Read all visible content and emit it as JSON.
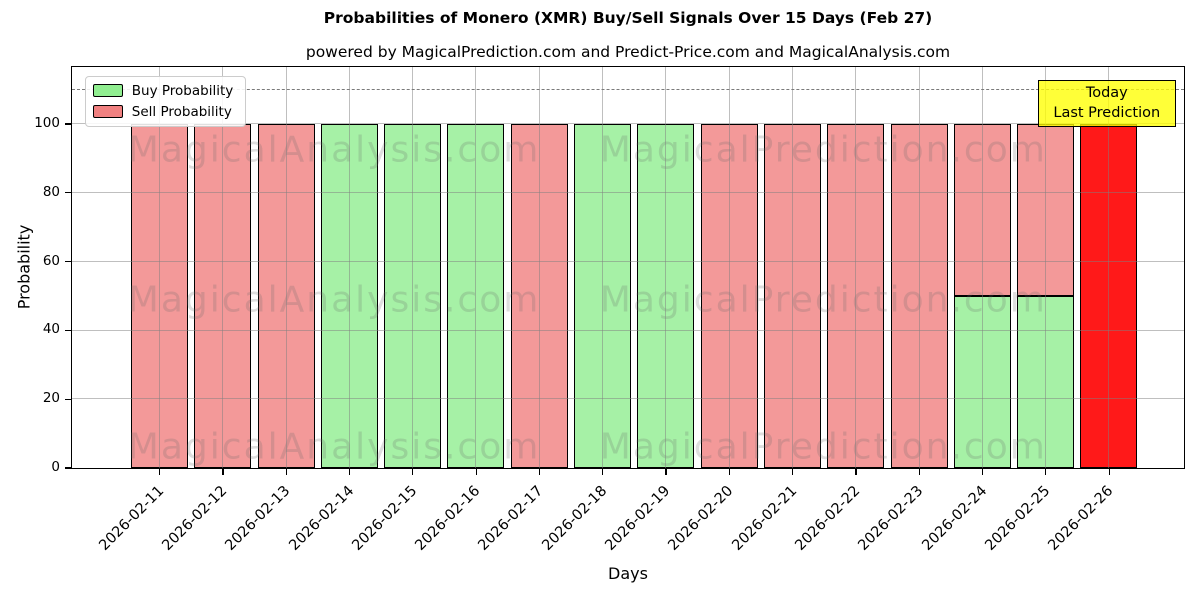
{
  "chart_data": {
    "type": "bar",
    "stacked": true,
    "title": "Probabilities of Monero (XMR) Buy/Sell Signals Over 15 Days (Feb 27)",
    "subtitle": "powered by MagicalPrediction.com and Predict-Price.com and MagicalAnalysis.com",
    "xlabel": "Days",
    "ylabel": "Probability",
    "categories": [
      "2026-02-11",
      "2026-02-12",
      "2026-02-13",
      "2026-02-14",
      "2026-02-15",
      "2026-02-16",
      "2026-02-17",
      "2026-02-18",
      "2026-02-19",
      "2026-02-20",
      "2026-02-21",
      "2026-02-22",
      "2026-02-23",
      "2026-02-24",
      "2026-02-25",
      "2026-02-26"
    ],
    "series": [
      {
        "name": "Buy Probability",
        "color": "#90EE90",
        "alpha": 0.8,
        "values": [
          0,
          0,
          0,
          100,
          100,
          100,
          0,
          100,
          100,
          0,
          0,
          0,
          0,
          50,
          50,
          0
        ]
      },
      {
        "name": "Sell Probability",
        "color": "#F08080",
        "alpha": 0.8,
        "values": [
          100,
          100,
          100,
          0,
          0,
          0,
          100,
          0,
          0,
          100,
          100,
          100,
          100,
          50,
          50,
          0
        ]
      },
      {
        "name": "Today Last Prediction",
        "color": "#FF0000",
        "alpha": 0.9,
        "values": [
          0,
          0,
          0,
          0,
          0,
          0,
          0,
          0,
          0,
          0,
          0,
          0,
          0,
          0,
          0,
          100
        ]
      }
    ],
    "yticks": [
      0,
      20,
      40,
      60,
      80,
      100
    ],
    "ylim": [
      0,
      116.6
    ],
    "grid": true,
    "dashed_line_y": 110,
    "legend": {
      "position": "upper left",
      "items": [
        {
          "label": "Buy Probability",
          "color": "#90EE90"
        },
        {
          "label": "Sell Probability",
          "color": "#F08080"
        }
      ]
    },
    "annotation_box": {
      "lines": [
        "Today",
        "Last Prediction"
      ],
      "bg_color": "#FFFF00",
      "border_color": "#000000"
    },
    "watermarks": {
      "left_text": "MagicalAnalysis.com",
      "right_text": "MagicalPrediction.com",
      "rows": 3
    }
  }
}
